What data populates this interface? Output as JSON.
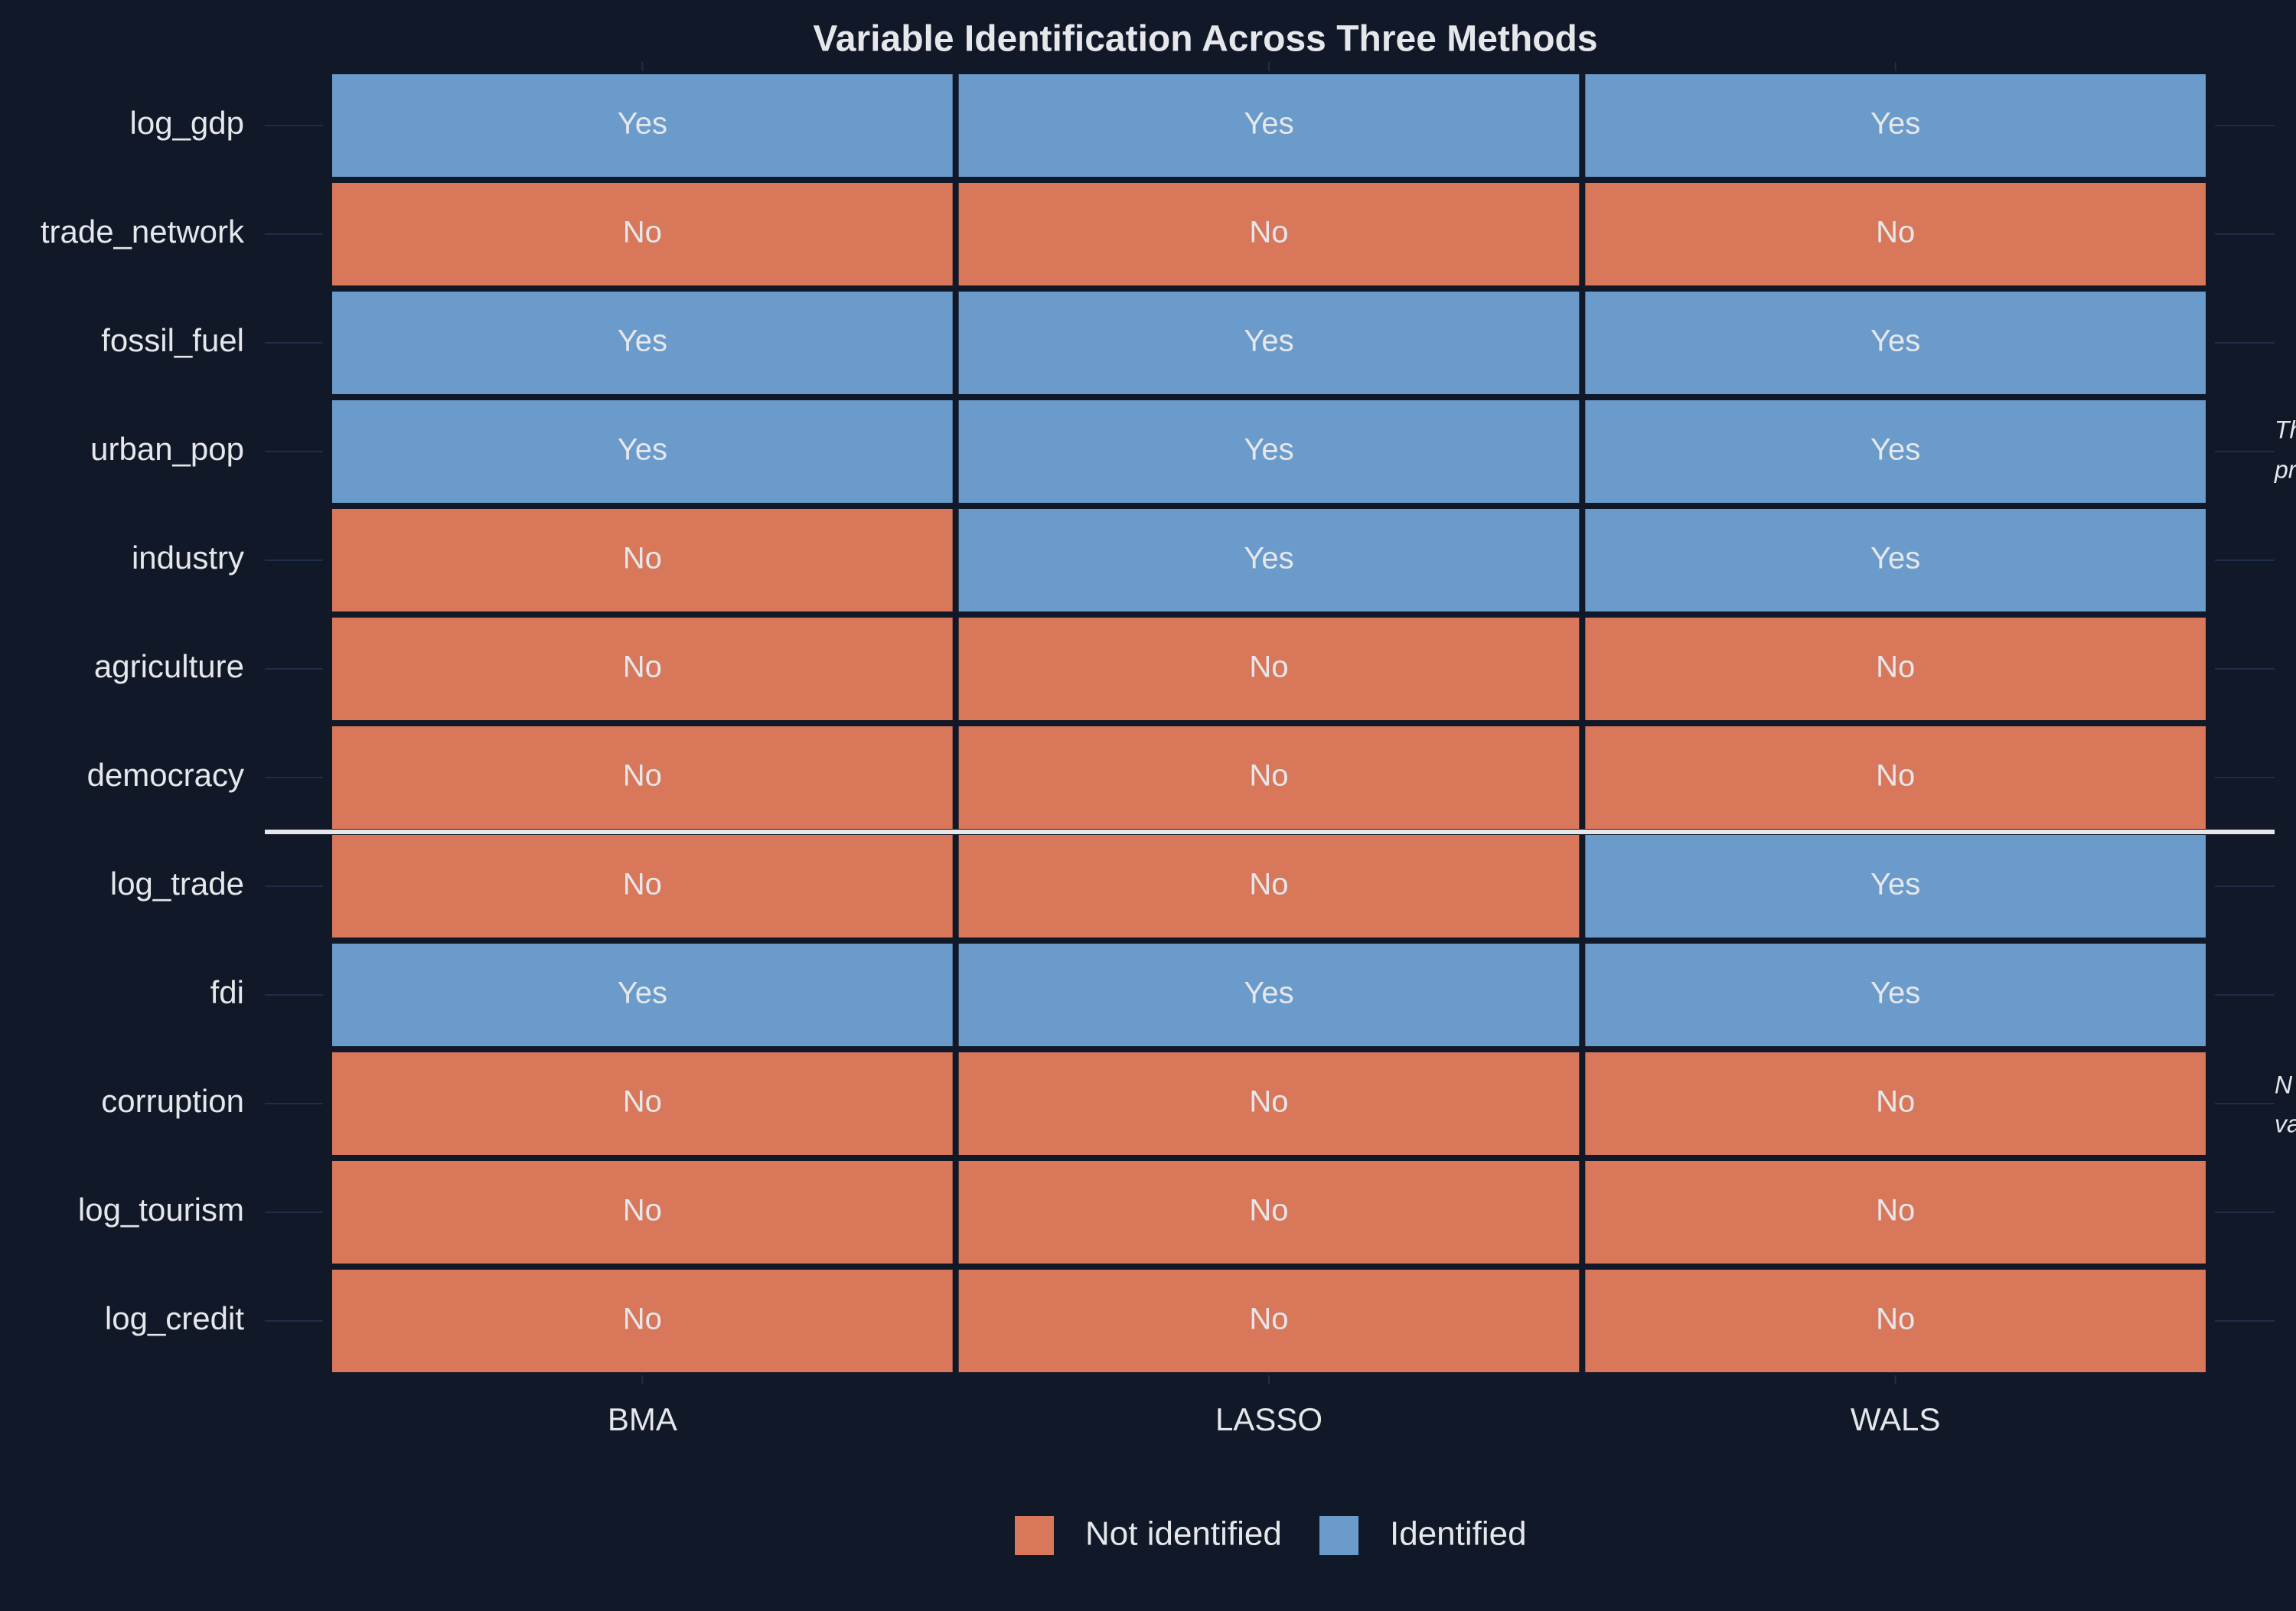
{
  "chart_data": {
    "type": "heatmap",
    "title": "Variable Identification Across Three Methods",
    "columns": [
      "BMA",
      "LASSO",
      "WALS"
    ],
    "rows": [
      "log_gdp",
      "trade_network",
      "fossil_fuel",
      "urban_pop",
      "industry",
      "agriculture",
      "democracy",
      "log_trade",
      "fdi",
      "corruption",
      "log_tourism",
      "log_credit"
    ],
    "values": [
      [
        "Yes",
        "Yes",
        "Yes"
      ],
      [
        "No",
        "No",
        "No"
      ],
      [
        "Yes",
        "Yes",
        "Yes"
      ],
      [
        "Yes",
        "Yes",
        "Yes"
      ],
      [
        "No",
        "Yes",
        "Yes"
      ],
      [
        "No",
        "No",
        "No"
      ],
      [
        "No",
        "No",
        "No"
      ],
      [
        "No",
        "No",
        "Yes"
      ],
      [
        "Yes",
        "Yes",
        "Yes"
      ],
      [
        "No",
        "No",
        "No"
      ],
      [
        "No",
        "No",
        "No"
      ],
      [
        "No",
        "No",
        "No"
      ]
    ],
    "legend": [
      {
        "name": "Not identified",
        "level": "No",
        "color": "#d9775a"
      },
      {
        "name": "Identified",
        "level": "Yes",
        "color": "#6b9bcb"
      }
    ],
    "annotations": [
      [
        "Th",
        "pr"
      ],
      [
        "N",
        "va"
      ]
    ]
  }
}
